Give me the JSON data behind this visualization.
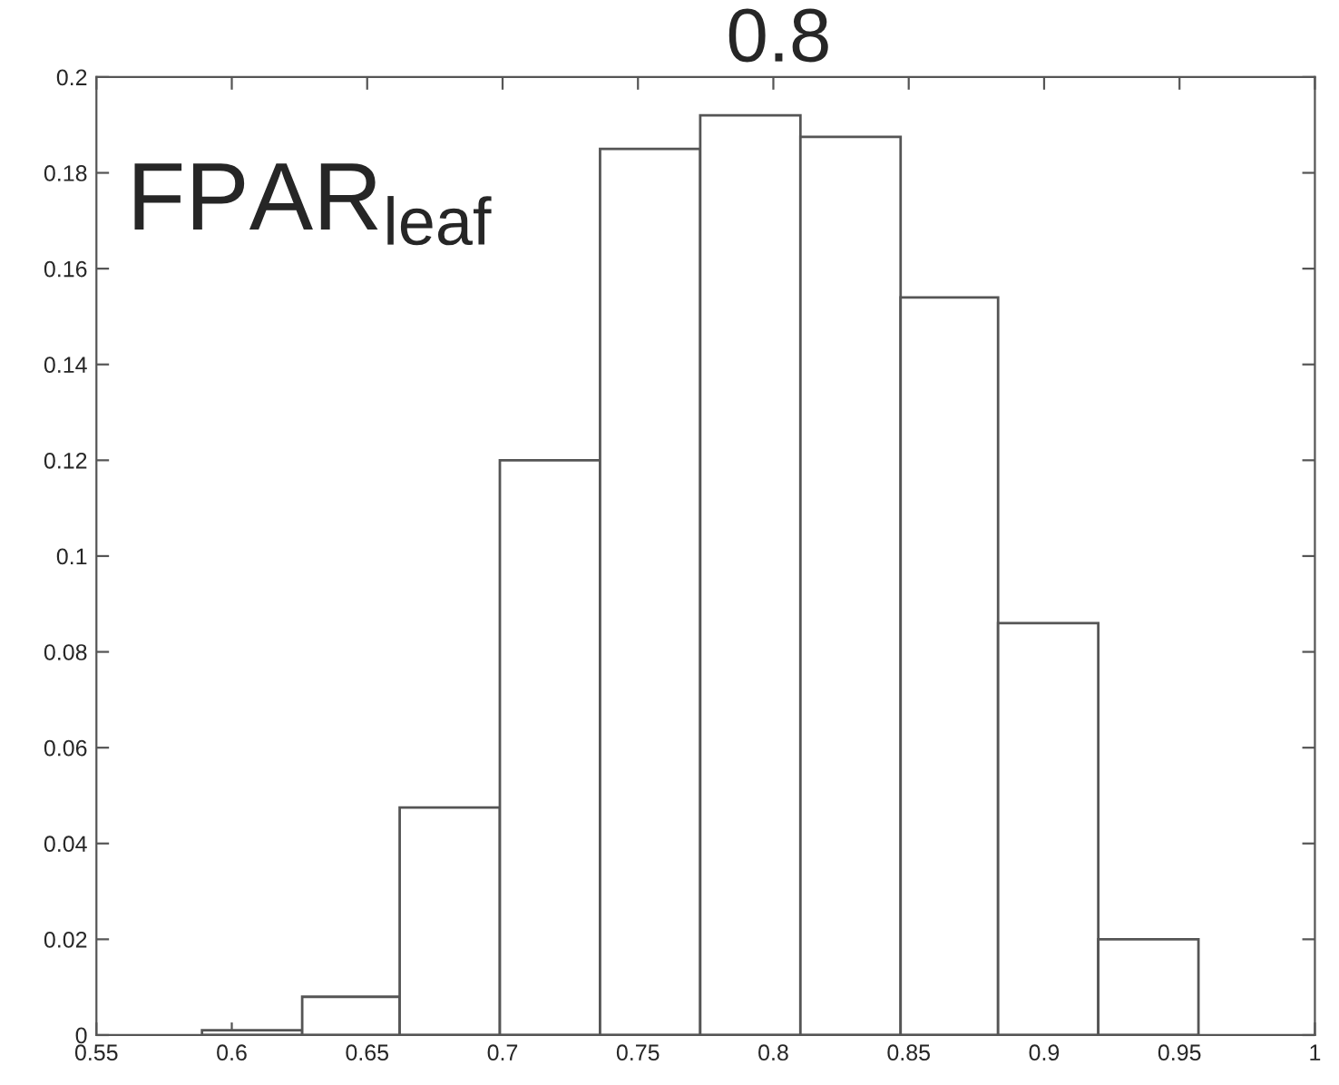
{
  "chart_data": {
    "type": "histogram",
    "bins": [
      0.589,
      0.626,
      0.662,
      0.699,
      0.736,
      0.773,
      0.81,
      0.847,
      0.883,
      0.92,
      0.957
    ],
    "values": [
      0.001,
      0.008,
      0.0475,
      0.12,
      0.185,
      0.192,
      0.1875,
      0.154,
      0.086,
      0.02
    ],
    "color": "#ffffff",
    "xlim": [
      0.55,
      1
    ],
    "xticks": [
      0.55,
      0.6,
      0.65,
      0.7,
      0.75,
      0.8,
      0.85,
      0.9,
      0.95,
      1
    ],
    "ylim": [
      0,
      0.2
    ],
    "yticks": [
      0,
      0.02,
      0.04,
      0.06,
      0.08,
      0.1,
      0.12,
      0.14,
      0.16,
      0.18,
      0.2
    ],
    "grid": false,
    "annotations": [
      "FPAR$_{leaf}$",
      "0.8"
    ]
  }
}
